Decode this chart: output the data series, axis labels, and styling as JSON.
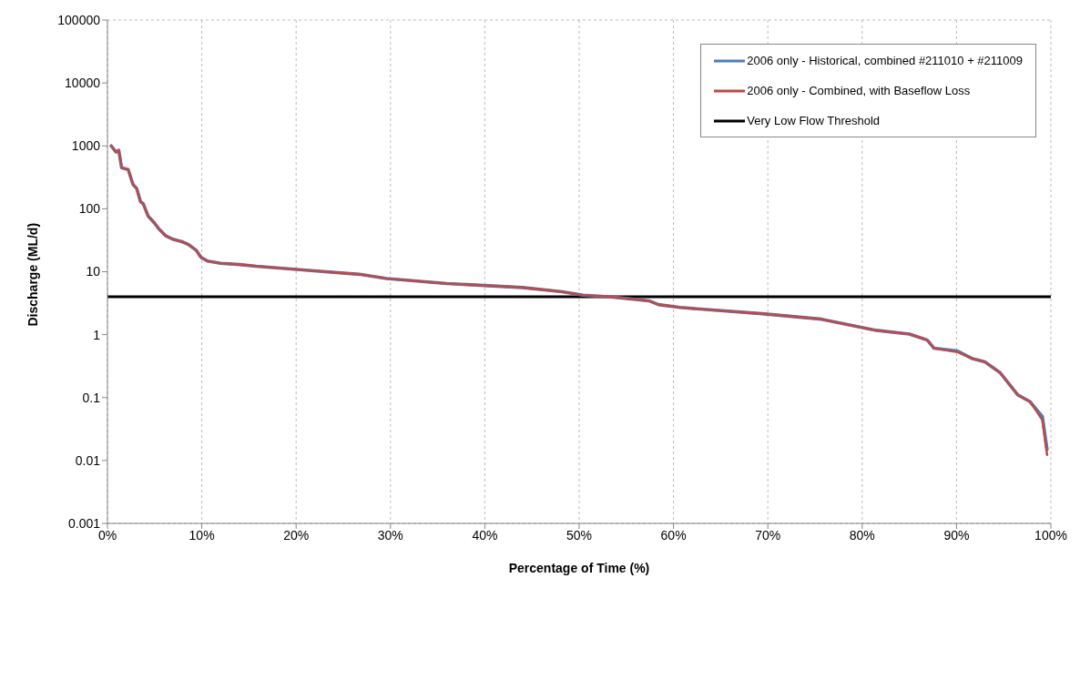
{
  "chart_data": {
    "type": "line",
    "xlabel": "Percentage of Time (%)",
    "ylabel": "Discharge (ML/d)",
    "x": [
      0.4,
      0.9,
      1.2,
      1.5,
      2.2,
      2.7,
      3.1,
      3.5,
      3.8,
      4.3,
      5,
      5.5,
      6.2,
      7,
      7.9,
      8.6,
      9.4,
      9.9,
      10.6,
      12,
      14,
      15.8,
      21.6,
      26.7,
      29.6,
      36,
      44,
      48.2,
      50.4,
      53.6,
      57.4,
      58.4,
      60.7,
      69.4,
      75.7,
      81.5,
      85,
      86.9,
      87.6,
      90.1,
      91.7,
      93,
      94.6,
      96.5,
      97.8,
      99.1,
      99.6
    ],
    "series": [
      {
        "name": "2006 only - Historical, combined #211010 + #211009",
        "color": "#4a7ebb",
        "values": [
          1000,
          800,
          850,
          450,
          420,
          245,
          210,
          130,
          120,
          77,
          59,
          47,
          37,
          32.5,
          30,
          27,
          22,
          17,
          14.8,
          13.6,
          13,
          12.2,
          10.4,
          9.1,
          7.8,
          6.5,
          5.6,
          4.8,
          4.25,
          3.95,
          3.45,
          3.0,
          2.7,
          2.15,
          1.76,
          1.17,
          1.02,
          0.82,
          0.61,
          0.55,
          0.415,
          0.37,
          0.25,
          0.11,
          0.086,
          0.05,
          0.015
        ]
      },
      {
        "name": "2006 only - Combined, with Baseflow Loss",
        "color": "#be4b48",
        "values": [
          1000,
          800,
          850,
          450,
          420,
          245,
          210,
          130,
          120,
          77,
          59,
          47,
          37,
          32.5,
          30,
          27,
          22,
          17,
          14.8,
          13.6,
          13,
          12.2,
          10.4,
          9.1,
          7.8,
          6.5,
          5.6,
          4.8,
          4.25,
          3.95,
          3.45,
          3.0,
          2.7,
          2.15,
          1.76,
          1.17,
          1.02,
          0.82,
          0.61,
          0.53,
          0.415,
          0.37,
          0.25,
          0.11,
          0.086,
          0.044,
          0.0123
        ]
      }
    ],
    "ref_lines": [
      {
        "axis": "y",
        "value": 4,
        "label": "Very Low Flow Threshold",
        "color": "#000000",
        "line_style": "solid"
      }
    ],
    "xlim": [
      0,
      100
    ],
    "xticks": [
      {
        "value": 0,
        "label": "0%"
      },
      {
        "value": 10,
        "label": "10%"
      },
      {
        "value": 20,
        "label": "20%"
      },
      {
        "value": 30,
        "label": "30%"
      },
      {
        "value": 40,
        "label": "40%"
      },
      {
        "value": 50,
        "label": "50%"
      },
      {
        "value": 60,
        "label": "60%"
      },
      {
        "value": 70,
        "label": "70%"
      },
      {
        "value": 80,
        "label": "80%"
      },
      {
        "value": 90,
        "label": "90%"
      },
      {
        "value": 100,
        "label": "100%"
      }
    ],
    "ylim": [
      0.001,
      100000
    ],
    "yticks": [
      0.001,
      0.01,
      0.1,
      1,
      10,
      100,
      1000,
      10000,
      100000
    ],
    "log": "y",
    "grid": true,
    "legend": "top right",
    "marker": "none",
    "line_style": "solid"
  }
}
